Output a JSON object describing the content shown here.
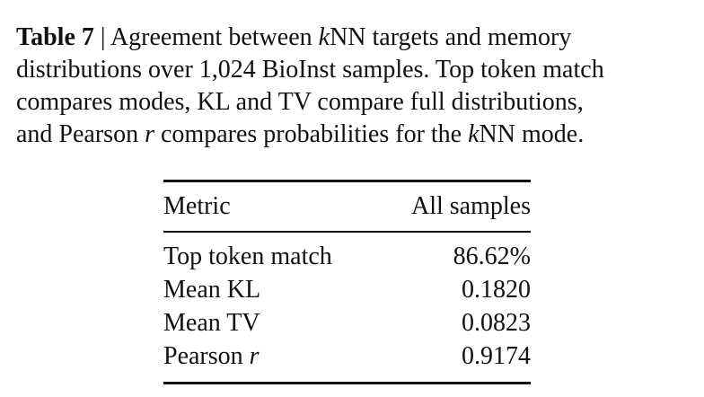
{
  "caption": {
    "label": "Table 7",
    "lines": [
      [
        " | Agreement between ",
        "k",
        "NN targets and memory"
      ],
      [
        "distributions over 1,024 BioInst samples. Top token match"
      ],
      [
        "compares modes, KL and TV compare full distributions,"
      ],
      [
        "and Pearson ",
        "r",
        " compares probabilities for the ",
        "k",
        "NN mode."
      ]
    ]
  },
  "table": {
    "header": [
      "Metric",
      "All samples"
    ],
    "rows": [
      [
        "Top token match",
        "86.62%"
      ],
      [
        "Mean KL",
        "0.1820"
      ],
      [
        "Mean TV",
        "0.0823"
      ],
      [
        [
          "Pearson ",
          "r"
        ],
        "0.9174"
      ]
    ]
  }
}
